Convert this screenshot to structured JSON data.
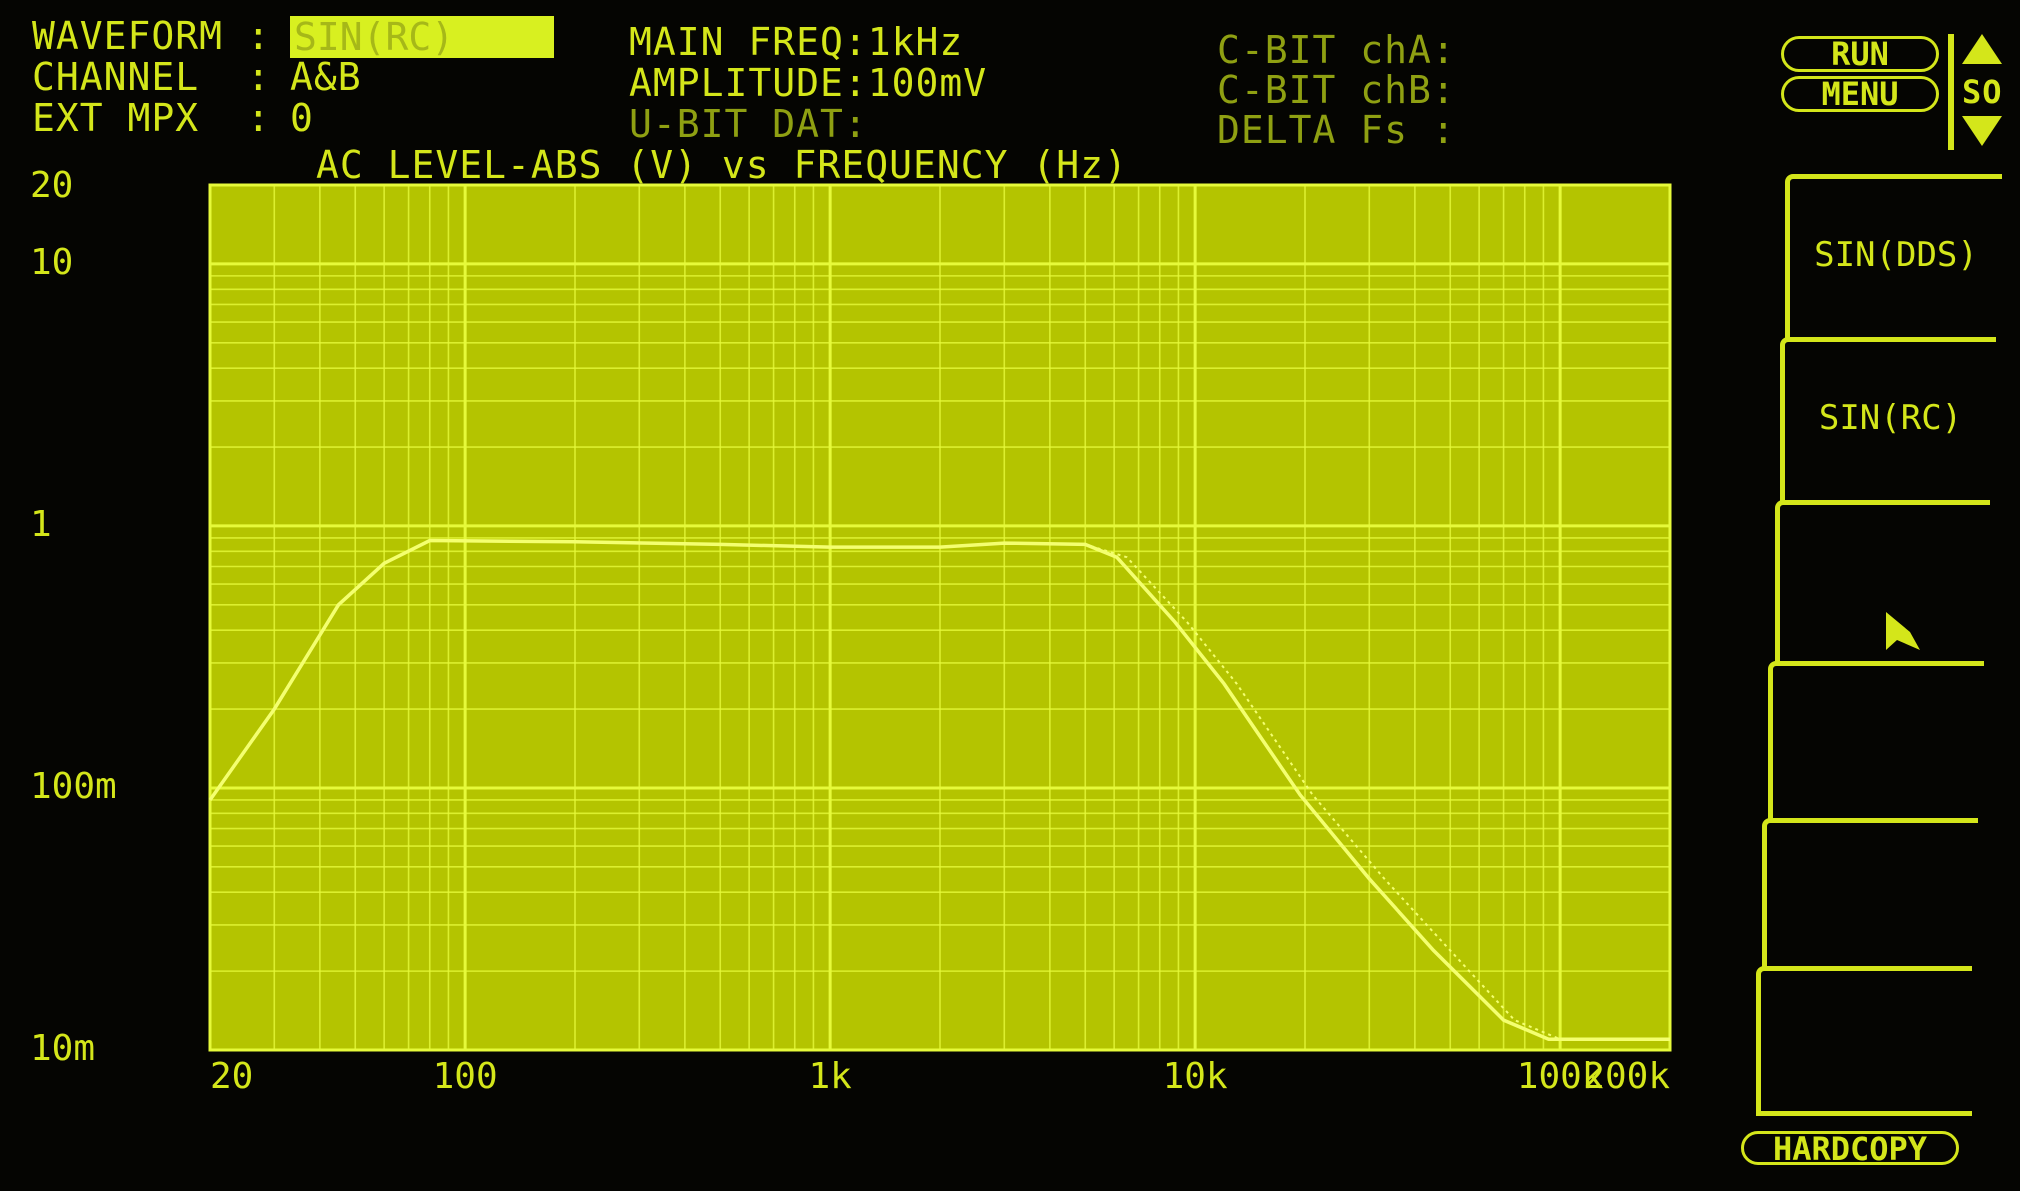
{
  "status": {
    "waveform_label": "WAVEFORM :",
    "waveform_value": "SIN(RC)",
    "channel_label": "CHANNEL  :",
    "channel_value": "A&B",
    "ext_mpx_label": "EXT MPX  :",
    "ext_mpx_value": "0",
    "main_freq": "MAIN FREQ:1kHz",
    "amplitude": "AMPLITUDE:100mV",
    "ubit": "U-BIT DAT:",
    "cbit_a": "C-BIT chA:",
    "cbit_b": "C-BIT chB:",
    "delta_fs": "DELTA Fs :"
  },
  "menu": {
    "run": "RUN",
    "menu": "MENU",
    "scroll": "SO",
    "items": [
      "SIN(DDS)",
      "SIN(RC)",
      "",
      "",
      "",
      ""
    ],
    "hardcopy": "HARDCOPY"
  },
  "colors": {
    "screen": "#050502",
    "plot_bg": "#b4c400",
    "grid": "#e6fa3a",
    "trace": "#f4ff70",
    "text": "#d4e61a"
  },
  "chart_data": {
    "type": "line",
    "title": "AC LEVEL-ABS (V) vs FREQUENCY (Hz)",
    "x_scale": "log",
    "y_scale": "log",
    "xlim": [
      20,
      200000
    ],
    "ylim": [
      0.01,
      20
    ],
    "x_ticks": [
      {
        "v": 20,
        "label": "20"
      },
      {
        "v": 100,
        "label": "100"
      },
      {
        "v": 1000,
        "label": "1k"
      },
      {
        "v": 10000,
        "label": "10k"
      },
      {
        "v": 100000,
        "label": "100k"
      },
      {
        "v": 200000,
        "label": "200k"
      }
    ],
    "y_ticks": [
      {
        "v": 20,
        "label": "20"
      },
      {
        "v": 10,
        "label": "10"
      },
      {
        "v": 1,
        "label": "1"
      },
      {
        "v": 0.1,
        "label": "100m"
      },
      {
        "v": 0.01,
        "label": "10m"
      }
    ],
    "grid": true,
    "series": [
      {
        "style": "solid",
        "x": [
          20,
          30,
          45,
          60,
          80,
          200,
          500,
          1000,
          2000,
          3000,
          5000,
          6100,
          8800,
          12000,
          19400,
          30000,
          45000,
          70000,
          93000,
          200000
        ],
        "y": [
          0.09,
          0.2,
          0.5,
          0.72,
          0.88,
          0.87,
          0.85,
          0.83,
          0.83,
          0.86,
          0.85,
          0.76,
          0.43,
          0.25,
          0.094,
          0.045,
          0.024,
          0.013,
          0.011,
          0.011
        ]
      },
      {
        "style": "dotted",
        "x": [
          20,
          30,
          45,
          60,
          80,
          200,
          500,
          1000,
          2000,
          3000,
          5000,
          6500,
          9500,
          13000,
          21000,
          33000,
          50000,
          75000,
          100000,
          200000
        ],
        "y": [
          0.09,
          0.2,
          0.5,
          0.72,
          0.88,
          0.87,
          0.85,
          0.83,
          0.83,
          0.86,
          0.85,
          0.76,
          0.43,
          0.25,
          0.094,
          0.045,
          0.024,
          0.013,
          0.011,
          0.011
        ]
      }
    ]
  }
}
